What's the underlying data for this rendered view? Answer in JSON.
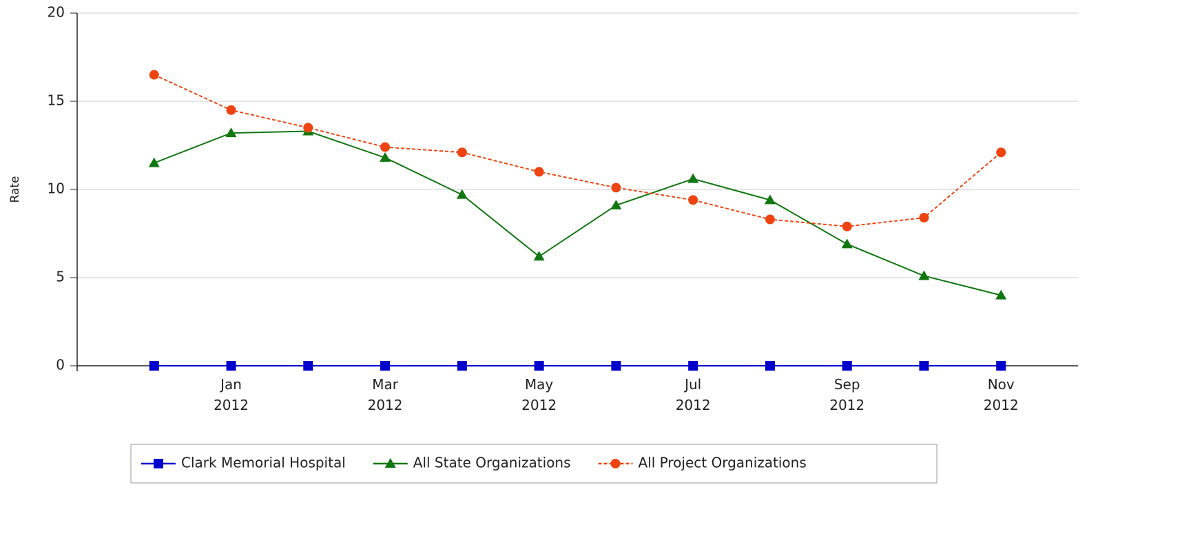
{
  "chart_data": {
    "type": "line",
    "y_label": "Rate",
    "categories": [
      null,
      "Jan 2012",
      null,
      "Mar 2012",
      null,
      "May 2012",
      null,
      "Jul 2012",
      null,
      "Sep 2012",
      null,
      "Nov 2012"
    ],
    "series": [
      {
        "name": "Clark Memorial Hospital",
        "color": "#0000cc",
        "marker": "square",
        "dash": false,
        "values": [
          0,
          0,
          0,
          0,
          0,
          0,
          0,
          0,
          0,
          0,
          0,
          0
        ]
      },
      {
        "name": "All State Organizations",
        "color": "#117711",
        "marker": "triangle",
        "dash": false,
        "values": [
          11.5,
          13.2,
          13.3,
          11.8,
          9.7,
          6.2,
          9.1,
          10.6,
          9.4,
          6.9,
          5.1,
          4.0
        ]
      },
      {
        "name": "All Project Organizations",
        "color": "#ee4411",
        "marker": "circle",
        "dash": true,
        "values": [
          16.5,
          14.5,
          13.5,
          12.4,
          12.1,
          11.0,
          10.1,
          9.4,
          8.3,
          7.9,
          8.4,
          12.1
        ]
      }
    ],
    "ylim": [
      0,
      20
    ],
    "yticks": [
      0,
      5,
      10,
      15,
      20
    ],
    "grid": true
  }
}
